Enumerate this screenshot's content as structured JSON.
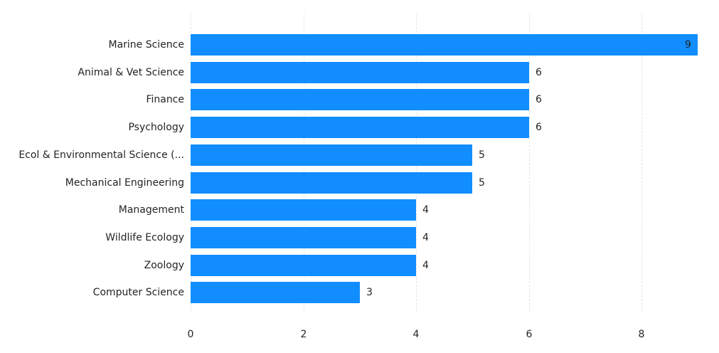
{
  "chart_data": {
    "type": "bar",
    "orientation": "horizontal",
    "title": "",
    "xlabel": "",
    "ylabel": "",
    "categories": [
      "Marine Science",
      "Animal & Vet Science",
      "Finance",
      "Psychology",
      "Ecol & Environmental Science (...",
      "Mechanical Engineering",
      "Management",
      "Wildlife Ecology",
      "Zoology",
      "Computer Science"
    ],
    "values": [
      9,
      6,
      6,
      6,
      5,
      5,
      4,
      4,
      4,
      3
    ],
    "data_labels": [
      "9",
      "6",
      "6",
      "6",
      "5",
      "5",
      "4",
      "4",
      "4",
      "3"
    ],
    "xlim": [
      0,
      9
    ],
    "x_ticks": [
      0,
      2,
      4,
      6,
      8
    ],
    "x_tick_labels": [
      "0",
      "2",
      "4",
      "6",
      "8"
    ],
    "grid": {
      "vertical": true,
      "style": "dashed"
    },
    "legend": null,
    "bar_color": "#118dff"
  }
}
